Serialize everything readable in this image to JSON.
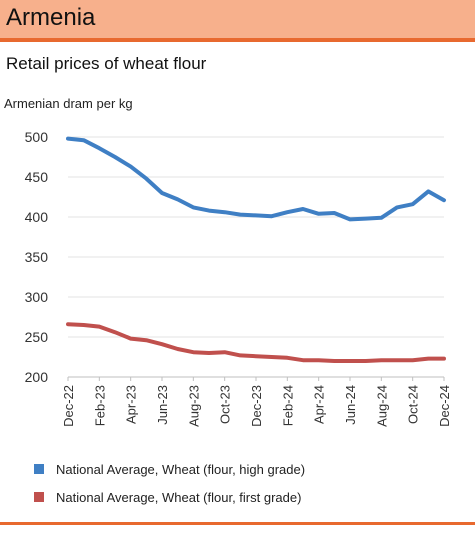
{
  "header": {
    "title": "Armenia"
  },
  "chart_data": {
    "type": "line",
    "title": "Retail prices of wheat flour",
    "ylabel": "Armenian dram per kg",
    "ylim": [
      200,
      500
    ],
    "yticks": [
      200,
      250,
      300,
      350,
      400,
      450,
      500
    ],
    "xticks": [
      "Dec-22",
      "Feb-23",
      "Apr-23",
      "Jun-23",
      "Aug-23",
      "Oct-23",
      "Dec-23",
      "Feb-24",
      "Apr-24",
      "Jun-24",
      "Aug-24",
      "Oct-24",
      "Dec-24"
    ],
    "x": [
      "Dec-22",
      "Jan-23",
      "Feb-23",
      "Mar-23",
      "Apr-23",
      "May-23",
      "Jun-23",
      "Jul-23",
      "Aug-23",
      "Sep-23",
      "Oct-23",
      "Nov-23",
      "Dec-23",
      "Jan-24",
      "Feb-24",
      "Mar-24",
      "Apr-24",
      "May-24",
      "Jun-24",
      "Jul-24",
      "Aug-24",
      "Sep-24",
      "Oct-24",
      "Nov-24",
      "Dec-24"
    ],
    "grid": true,
    "legend_position": "bottom",
    "series": [
      {
        "name": "National Average, Wheat (flour, high grade)",
        "color": "#3f7fc4",
        "values": [
          498,
          496,
          486,
          475,
          463,
          448,
          430,
          422,
          412,
          408,
          406,
          403,
          402,
          401,
          406,
          410,
          404,
          405,
          397,
          398,
          399,
          412,
          416,
          432,
          421
        ]
      },
      {
        "name": "National Average, Wheat (flour, first grade)",
        "color": "#c0504d",
        "values": [
          266,
          265,
          263,
          256,
          248,
          246,
          241,
          235,
          231,
          230,
          231,
          227,
          226,
          225,
          224,
          221,
          221,
          220,
          220,
          220,
          221,
          221,
          221,
          223,
          223
        ]
      }
    ]
  }
}
